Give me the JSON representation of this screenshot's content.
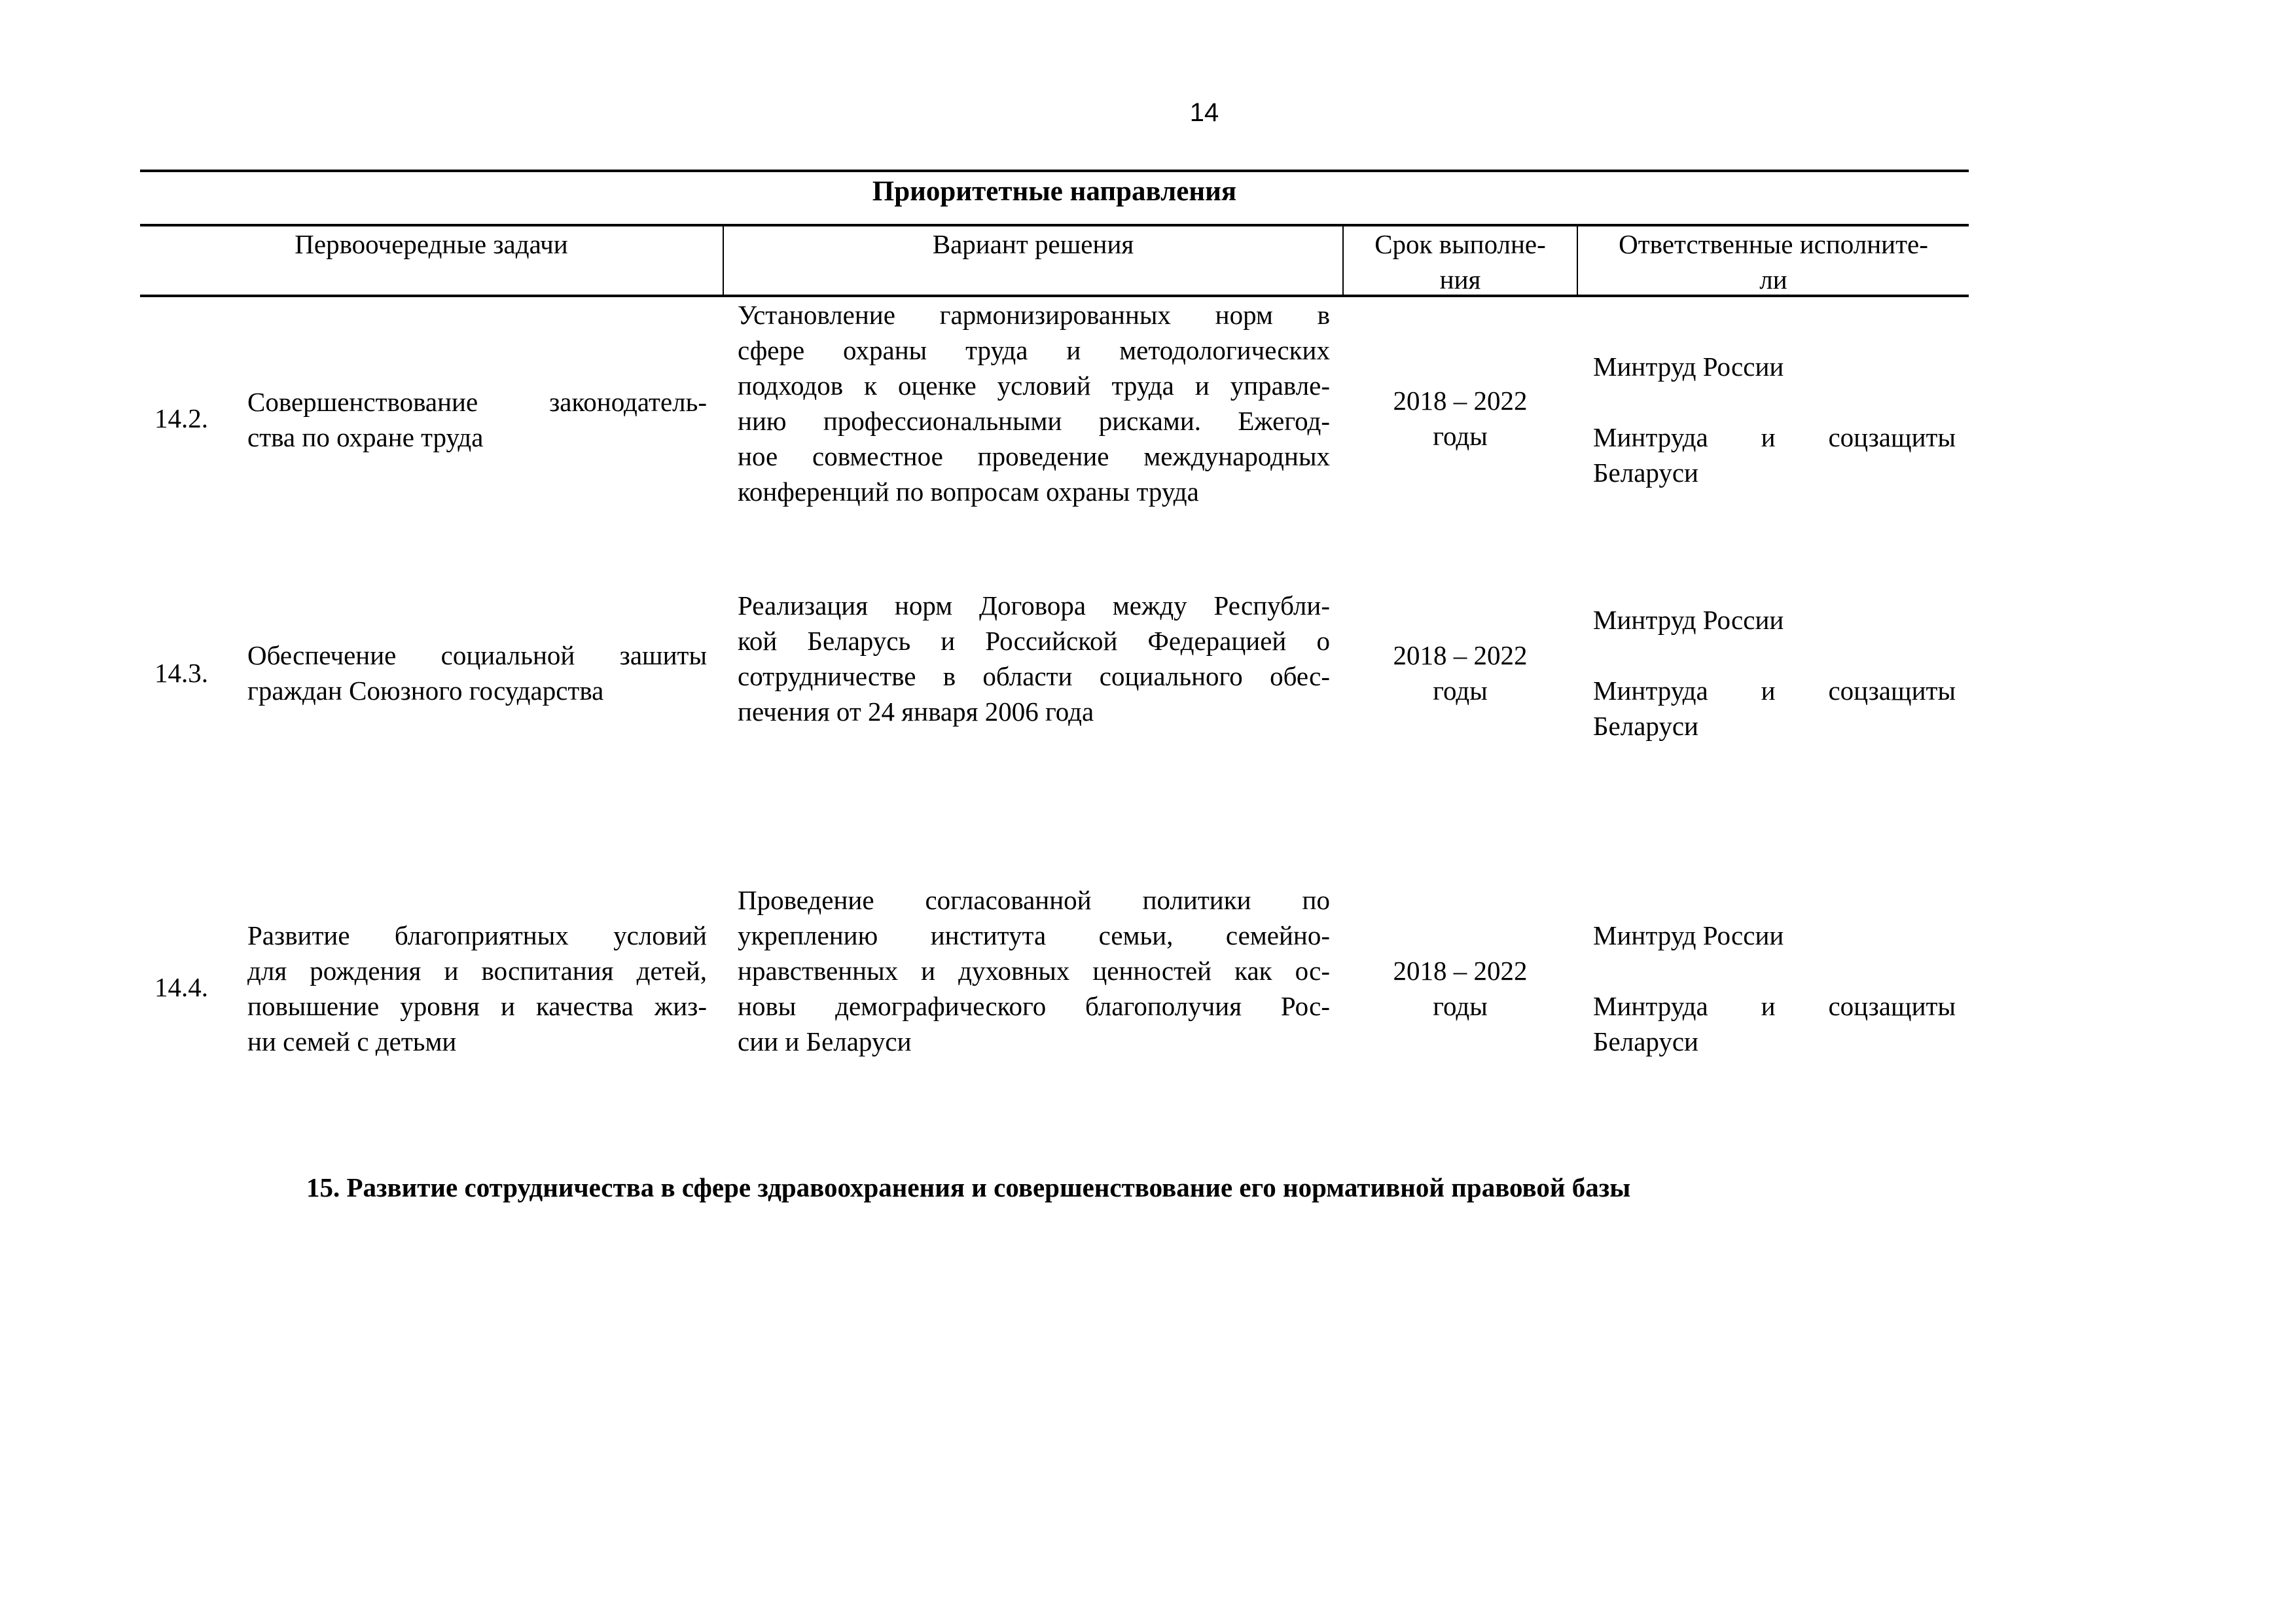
{
  "page_number": "14",
  "table": {
    "title": "Приоритетные направления",
    "headers": {
      "tasks": "Первоочередные задачи",
      "solution": "Вариант решения",
      "period": [
        "Срок выполне-",
        "ния"
      ],
      "responsible": [
        "Ответственные исполните-",
        "ли"
      ]
    },
    "rows": [
      {
        "number": "14.2.",
        "task": [
          "Совершенствование законодатель-",
          "ства по охране труда"
        ],
        "solution": [
          "Установление гармонизированных норм в",
          "сфере охраны труда и методологических",
          "подходов к оценке условий труда и управле-",
          "нию профессиональными рисками. Ежегод-",
          "ное совместное проведение международных",
          "конференций по вопросам охраны труда"
        ],
        "period": [
          "2018 – 2022",
          "годы"
        ],
        "responsible": [
          "Минтруд России",
          "",
          "Минтруда и соцзащиты",
          "Беларуси"
        ]
      },
      {
        "number": "14.3.",
        "task": [
          "Обеспечение социальной зашиты",
          "граждан Союзного государства"
        ],
        "solution": [
          "Реализация норм Договора между Республи-",
          "кой Беларусь и Российской Федерацией о",
          "сотрудничестве в области социального обес-",
          "печения от 24 января 2006 года"
        ],
        "period": [
          "2018 – 2022",
          "годы"
        ],
        "responsible": [
          "Минтруд России",
          "",
          "Минтруда и соцзащиты",
          "Беларуси"
        ]
      },
      {
        "number": "14.4.",
        "task": [
          "Развитие благоприятных условий",
          "для рождения и воспитания детей,",
          "повышение уровня и качества жиз-",
          "ни семей с детьми"
        ],
        "solution": [
          "Проведение согласованной политики по",
          "укреплению института семьи, семейно-",
          "нравственных и духовных ценностей как ос-",
          "новы демографического благополучия Рос-",
          "сии и Беларуси"
        ],
        "period": [
          "2018 – 2022",
          "годы"
        ],
        "responsible": [
          "Минтруд России",
          "",
          "Минтруда и соцзащиты",
          "Беларуси"
        ]
      }
    ]
  },
  "section_heading": "15. Развитие сотрудничества в сфере здравоохранения и совершенствование его нормативной правовой базы"
}
